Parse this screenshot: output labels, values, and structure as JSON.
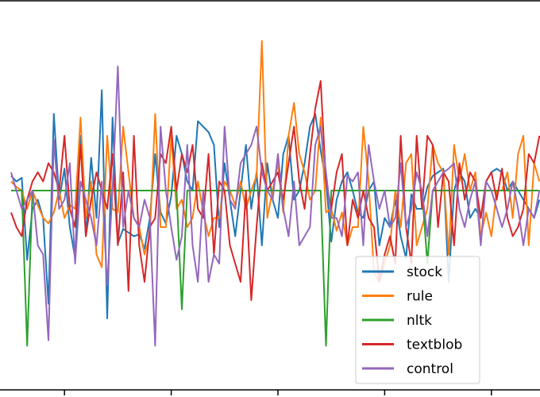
{
  "chart_data": {
    "type": "line",
    "title": "",
    "xlabel": "",
    "ylabel": "",
    "xlim": [
      0,
      100
    ],
    "ylim": [
      -1.0,
      1.0
    ],
    "grid": false,
    "legend_placement": "lower-right",
    "x": [
      0,
      1,
      2,
      3,
      4,
      5,
      6,
      7,
      8,
      9,
      10,
      11,
      12,
      13,
      14,
      15,
      16,
      17,
      18,
      19,
      20,
      21,
      22,
      23,
      24,
      25,
      26,
      27,
      28,
      29,
      30,
      31,
      32,
      33,
      34,
      35,
      36,
      37,
      38,
      39,
      40,
      41,
      42,
      43,
      44,
      45,
      46,
      47,
      48,
      49,
      50,
      51,
      52,
      53,
      54,
      55,
      56,
      57,
      58,
      59,
      60,
      61,
      62,
      63,
      64,
      65,
      66,
      67,
      68,
      69,
      70,
      71,
      72,
      73,
      74,
      75,
      76,
      77,
      78,
      79,
      80,
      81,
      82,
      83,
      84,
      85,
      86,
      87,
      88,
      89,
      90,
      91,
      92,
      93,
      94,
      95,
      96,
      97,
      98,
      99
    ],
    "series": [
      {
        "name": "stock",
        "color": "#1f77b4",
        "values": [
          0.08,
          0.05,
          0.07,
          -0.38,
          -0.1,
          -0.05,
          -0.15,
          -0.62,
          0.42,
          -0.05,
          0.12,
          -0.2,
          -0.37,
          0.3,
          -0.25,
          0.18,
          -0.15,
          0.55,
          -0.7,
          0.4,
          -0.29,
          -0.21,
          -0.23,
          -0.25,
          -0.24,
          -0.32,
          -0.15,
          0.2,
          -0.12,
          -0.18,
          -0.03,
          0.3,
          0.2,
          0.05,
          0.0,
          0.38,
          0.35,
          0.32,
          0.25,
          -0.2,
          0.15,
          -0.05,
          -0.25,
          0.0,
          0.25,
          -0.1,
          0.1,
          -0.3,
          0.15,
          -0.05,
          -0.15,
          0.2,
          0.3,
          -0.05,
          0.0,
          0.15,
          0.35,
          0.42,
          0.22,
          0.05,
          -0.28,
          -0.05,
          0.05,
          0.1,
          0.0,
          -0.12,
          -0.15,
          0.0,
          0.05,
          -0.3,
          -0.15,
          -0.2,
          -0.05,
          -0.25,
          -0.37,
          -0.02,
          -0.1,
          -0.1,
          0.02,
          0.08,
          0.1,
          0.12,
          -0.5,
          0.0,
          0.1,
          0.05,
          -0.15,
          -0.1,
          -0.15,
          0.05,
          0.1,
          0.12,
          0.1,
          0.0,
          0.05,
          0.0,
          -0.05,
          -0.1,
          -0.15,
          -0.05
        ]
      },
      {
        "name": "rule",
        "color": "#ff7f0e",
        "values": [
          0.05,
          0.02,
          0.0,
          -0.1,
          0.0,
          -0.08,
          -0.15,
          -0.18,
          -0.12,
          0.0,
          -0.15,
          -0.08,
          -0.1,
          0.4,
          -0.15,
          0.05,
          -0.35,
          -0.42,
          0.3,
          -0.1,
          -0.12,
          0.35,
          0.1,
          -0.15,
          -0.2,
          -0.35,
          -0.25,
          0.42,
          -0.2,
          -0.2,
          0.3,
          -0.1,
          -0.05,
          -0.2,
          -0.15,
          0.05,
          -0.12,
          -0.25,
          -0.15,
          -0.15,
          0.05,
          0.0,
          -0.08,
          0.05,
          -0.1,
          0.0,
          0.08,
          0.82,
          -0.15,
          0.0,
          0.15,
          -0.12,
          0.3,
          0.48,
          0.2,
          0.1,
          -0.05,
          0.0,
          0.4,
          -0.12,
          -0.1,
          -0.22,
          -0.12,
          -0.3,
          -0.2,
          -0.2,
          0.35,
          0.05,
          -0.45,
          -0.5,
          -0.4,
          -0.3,
          0.0,
          -0.2,
          0.15,
          0.2,
          -0.3,
          -0.2,
          -0.1,
          0.25,
          0.15,
          0.1,
          -0.35,
          0.25,
          0.05,
          0.2,
          0.0,
          0.1,
          -0.25,
          -0.12,
          -0.25,
          0.0,
          0.0,
          0.1,
          -0.15,
          0.2,
          0.3,
          -0.3,
          0.15,
          0.05
        ]
      },
      {
        "name": "nltk",
        "color": "#2ca02c",
        "values": [
          0.0,
          0.0,
          0.0,
          -0.85,
          0.0,
          0.0,
          0.0,
          0.0,
          0.0,
          0.0,
          0.0,
          0.0,
          0.0,
          0.0,
          0.0,
          0.0,
          0.0,
          0.0,
          0.0,
          0.0,
          0.0,
          0.0,
          0.0,
          0.0,
          0.0,
          0.0,
          0.0,
          0.0,
          0.0,
          0.0,
          0.0,
          0.0,
          -0.65,
          0.0,
          0.0,
          0.0,
          0.0,
          0.0,
          0.0,
          0.0,
          0.0,
          0.0,
          0.0,
          0.0,
          0.0,
          0.0,
          0.0,
          0.0,
          0.0,
          0.0,
          0.0,
          0.0,
          0.0,
          0.0,
          0.0,
          0.0,
          0.0,
          0.0,
          0.0,
          -0.85,
          0.0,
          0.0,
          0.0,
          0.0,
          0.0,
          0.0,
          0.0,
          0.0,
          0.0,
          0.0,
          0.0,
          0.0,
          0.0,
          0.0,
          0.0,
          0.0,
          0.0,
          0.0,
          -0.4,
          0.0,
          0.0,
          0.0,
          0.0,
          0.0,
          0.0,
          0.0,
          0.0,
          0.0,
          0.0,
          0.0,
          0.0,
          0.0,
          0.0,
          0.0,
          0.0,
          0.0,
          0.0,
          0.0,
          0.0,
          0.0
        ]
      },
      {
        "name": "textblob",
        "color": "#d62728",
        "values": [
          -0.12,
          -0.2,
          -0.25,
          -0.05,
          0.05,
          0.1,
          0.05,
          0.15,
          0.1,
          0.0,
          0.3,
          -0.1,
          -0.2,
          0.25,
          -0.25,
          -0.05,
          0.1,
          0.0,
          -0.1,
          0.2,
          -0.3,
          0.1,
          -0.55,
          0.3,
          -0.3,
          -0.5,
          -0.2,
          -0.15,
          0.2,
          0.15,
          0.35,
          0.0,
          0.2,
          0.1,
          0.25,
          -0.1,
          -0.15,
          0.2,
          -0.35,
          0.05,
          0.0,
          -0.3,
          -0.4,
          -0.5,
          0.0,
          -0.6,
          -0.2,
          0.15,
          0.0,
          0.05,
          0.1,
          -0.05,
          0.15,
          0.35,
          0.05,
          -0.1,
          0.2,
          0.45,
          0.6,
          0.05,
          -0.1,
          0.1,
          0.2,
          -0.3,
          -0.05,
          -0.15,
          0.0,
          -0.15,
          -0.2,
          -0.5,
          -0.35,
          -0.25,
          -0.4,
          0.3,
          -0.2,
          -0.4,
          0.3,
          -0.1,
          0.3,
          0.25,
          -0.2,
          0.1,
          0.05,
          -0.3,
          0.15,
          -0.05,
          0.1,
          0.05,
          -0.15,
          0.05,
          0.1,
          -0.05,
          0.12,
          -0.15,
          -0.25,
          -0.2,
          -0.1,
          0.2,
          0.15,
          0.3
        ]
      },
      {
        "name": "control",
        "color": "#9467bd",
        "values": [
          0.1,
          0.0,
          -0.1,
          -0.05,
          0.0,
          -0.3,
          -0.35,
          -0.82,
          0.28,
          -0.1,
          -0.05,
          0.15,
          -0.4,
          0.05,
          -0.05,
          -0.15,
          -0.3,
          0.05,
          -0.52,
          0.0,
          0.68,
          -0.2,
          0.0,
          -0.15,
          -0.2,
          -0.05,
          -0.15,
          -0.85,
          0.35,
          0.0,
          -0.2,
          -0.38,
          -0.25,
          0.25,
          -0.3,
          -0.5,
          0.0,
          -0.5,
          -0.35,
          -0.4,
          0.35,
          -0.05,
          -0.1,
          0.15,
          0.2,
          0.25,
          0.35,
          0.1,
          0.0,
          -0.05,
          0.2,
          -0.1,
          -0.25,
          0.05,
          -0.3,
          -0.25,
          -0.2,
          0.25,
          0.35,
          0.1,
          -0.15,
          -0.15,
          -0.25,
          0.08,
          0.05,
          0.1,
          -0.3,
          0.25,
          0.05,
          -0.1,
          0.0,
          -0.2,
          -0.15,
          0.15,
          -0.2,
          -0.1,
          0.1,
          0.0,
          -0.25,
          0.0,
          0.05,
          0.1,
          0.12,
          0.15,
          -0.1,
          -0.2,
          -0.05,
          0.05,
          -0.3,
          0.05,
          0.0,
          -0.1,
          -0.2,
          -0.1,
          0.05,
          -0.1,
          -0.3,
          -0.1,
          -0.15,
          0.0
        ]
      }
    ]
  }
}
